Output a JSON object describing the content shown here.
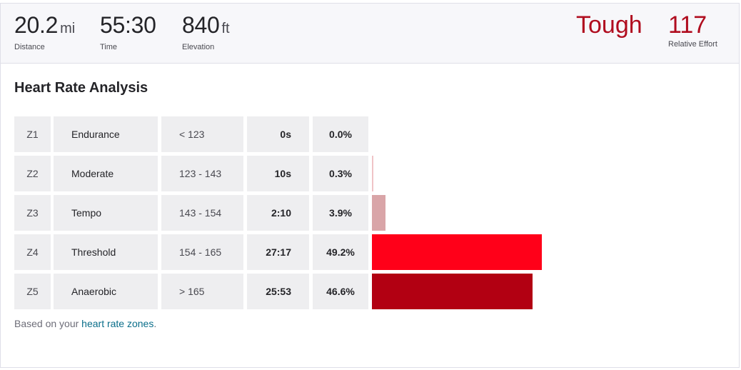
{
  "summary": {
    "distance": {
      "value": "20.2",
      "unit": "mi",
      "label": "Distance"
    },
    "time": {
      "value": "55:30",
      "label": "Time"
    },
    "elevation": {
      "value": "840",
      "unit": "ft",
      "label": "Elevation"
    },
    "effort": {
      "word": "Tough",
      "score": "117",
      "label": "Relative Effort"
    }
  },
  "analysis": {
    "title": "Heart Rate Analysis",
    "zones": [
      {
        "zone": "Z1",
        "name": "Endurance",
        "range": "< 123",
        "time": "0s",
        "percent_label": "0.0%",
        "percent": 0.0,
        "color": "#f6d8d8"
      },
      {
        "zone": "Z2",
        "name": "Moderate",
        "range": "123 - 143",
        "time": "10s",
        "percent_label": "0.3%",
        "percent": 0.3,
        "color": "#f0c4c7"
      },
      {
        "zone": "Z3",
        "name": "Tempo",
        "range": "143 - 154",
        "time": "2:10",
        "percent_label": "3.9%",
        "percent": 3.9,
        "color": "#d9a5a8"
      },
      {
        "zone": "Z4",
        "name": "Threshold",
        "range": "154 - 165",
        "time": "27:17",
        "percent_label": "49.2%",
        "percent": 49.2,
        "color": "#ff0019"
      },
      {
        "zone": "Z5",
        "name": "Anaerobic",
        "range": "> 165",
        "time": "25:53",
        "percent_label": "46.6%",
        "percent": 46.6,
        "color": "#b20012"
      }
    ],
    "footnote_prefix": "Based on your ",
    "footnote_link": "heart rate zones",
    "footnote_suffix": "."
  }
}
